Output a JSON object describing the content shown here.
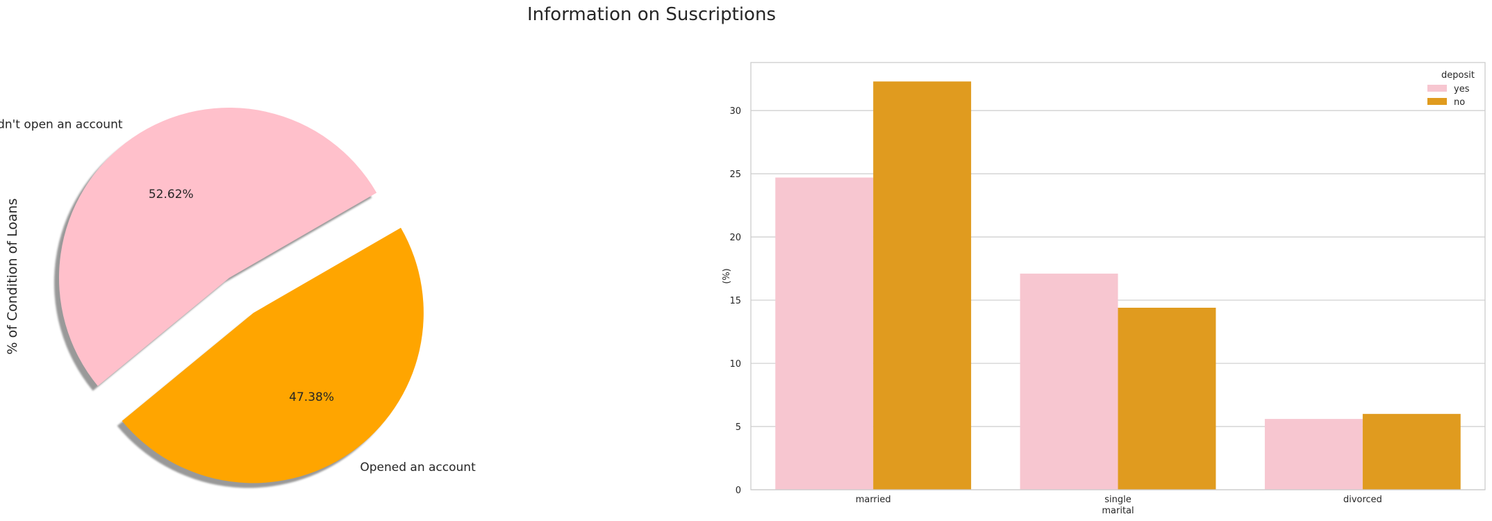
{
  "figure": {
    "title": "Information on Suscriptions"
  },
  "chart_data": [
    {
      "type": "pie",
      "ylabel": "% of Condition of Loans",
      "labels": [
        "Didn't open an account",
        "Opened an account"
      ],
      "values": [
        52.62,
        47.38
      ],
      "autopct_labels": [
        "52.62%",
        "47.38%"
      ],
      "colors": [
        "#FFC0CB",
        "#FFA500"
      ],
      "explode": [
        0,
        0.25
      ],
      "shadow": true
    },
    {
      "type": "bar",
      "xlabel": "marital",
      "ylabel": "(%)",
      "categories": [
        "married",
        "single",
        "divorced"
      ],
      "legend_title": "deposit",
      "legend_position": "top-right",
      "grid": true,
      "ylim": [
        0,
        33.8
      ],
      "yticks": [
        0,
        5,
        10,
        15,
        20,
        25,
        30
      ],
      "series": [
        {
          "name": "yes",
          "color": "#F7C6D0",
          "values": [
            24.7,
            17.1,
            5.6
          ]
        },
        {
          "name": "no",
          "color": "#E09B1F",
          "values": [
            32.3,
            14.4,
            6.0
          ]
        }
      ]
    }
  ]
}
